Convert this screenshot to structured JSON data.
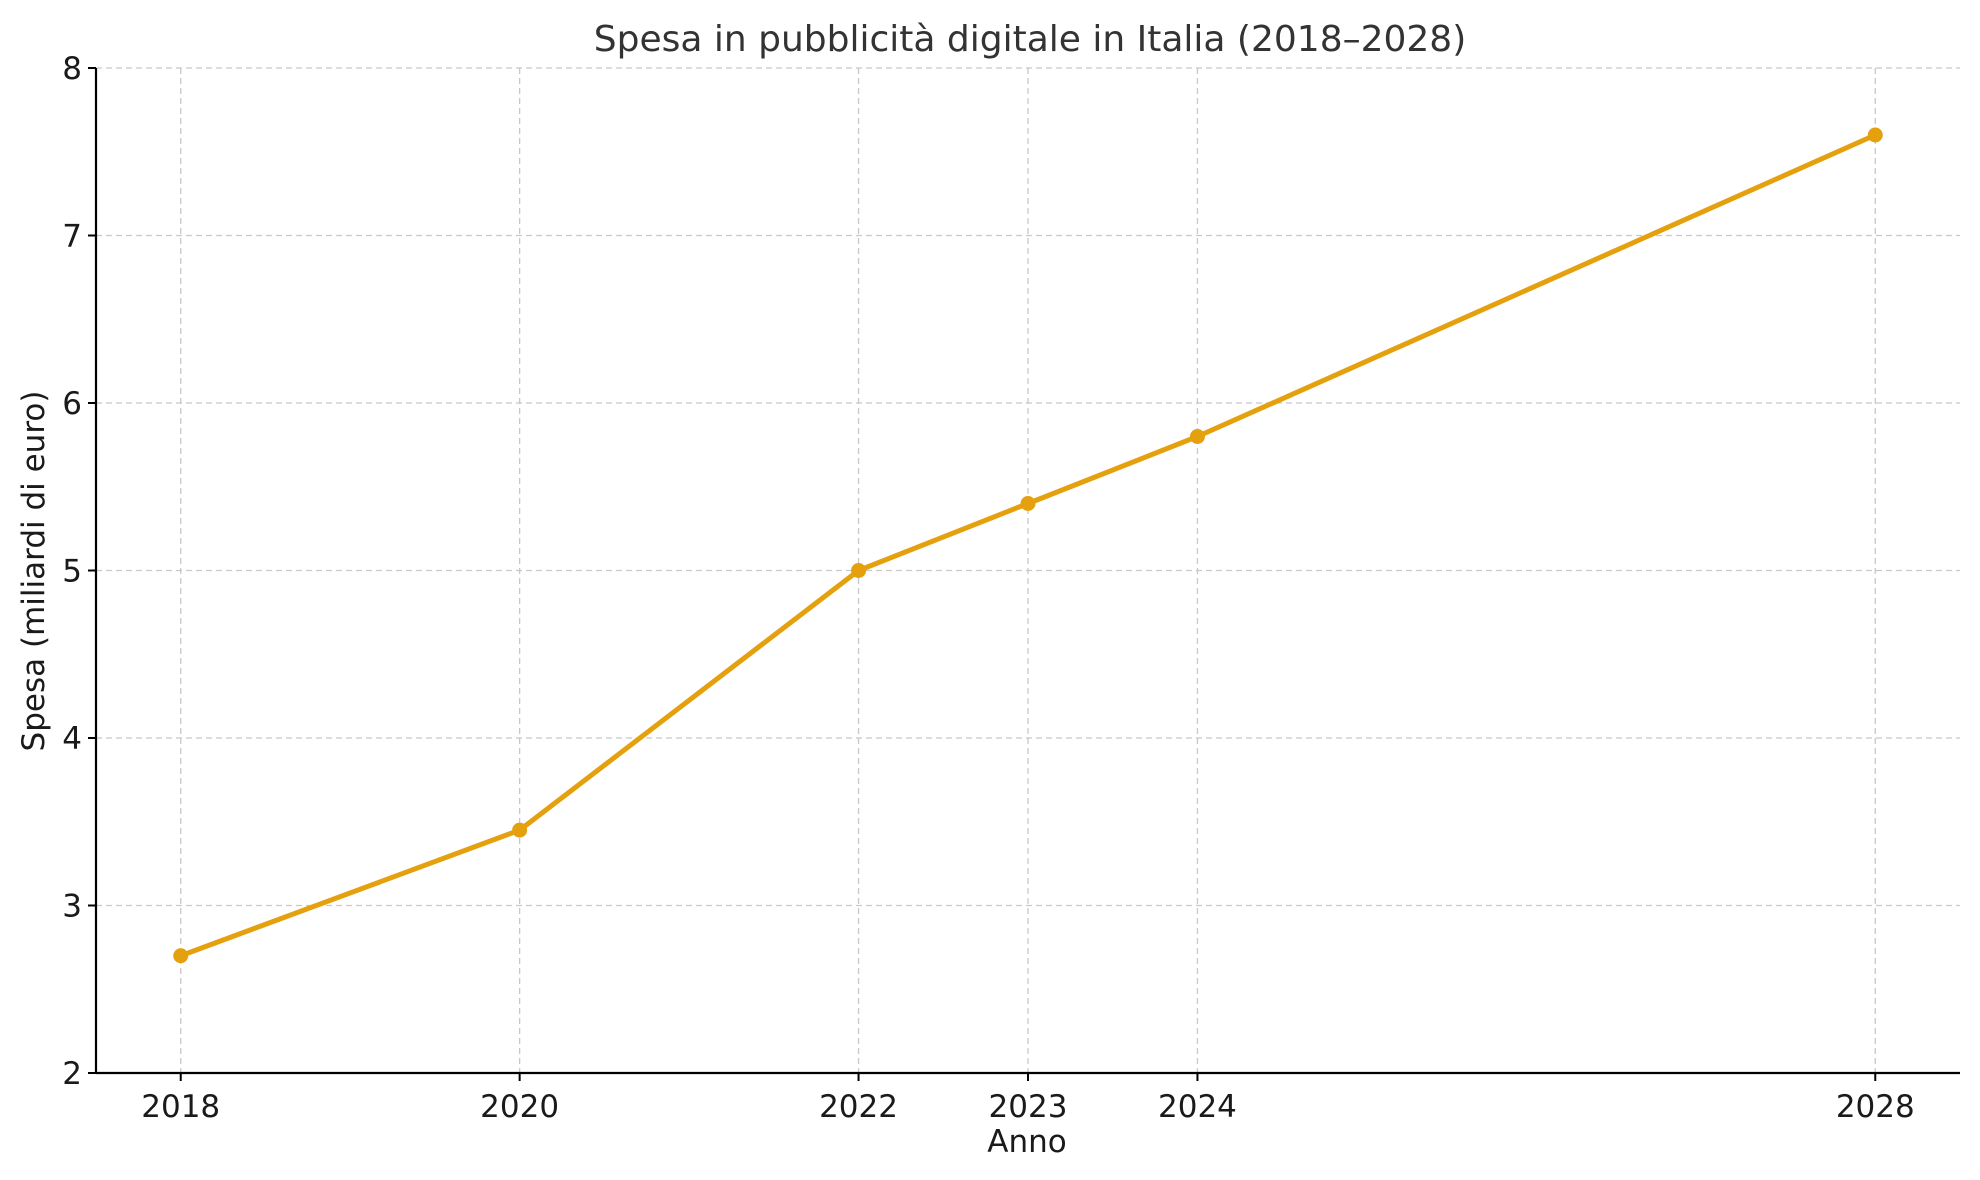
{
  "colors": {
    "series": "#E5A00D",
    "grid": "#C8C8C8",
    "axis": "#000000",
    "title": "#333333"
  },
  "chart_data": {
    "type": "line",
    "title": "Spesa in pubblicità digitale in Italia (2018–2028)",
    "xlabel": "Anno",
    "ylabel": "Spesa (miliardi di euro)",
    "x": [
      2018,
      2020,
      2022,
      2023,
      2024,
      2028
    ],
    "x_tick_labels": [
      "2018",
      "2020",
      "2022",
      "2023",
      "2024",
      "2028"
    ],
    "y_ticks": [
      2,
      3,
      4,
      5,
      6,
      7,
      8
    ],
    "y_tick_labels": [
      "2",
      "3",
      "4",
      "5",
      "6",
      "7",
      "8"
    ],
    "xlim": [
      2017.5,
      2028.5
    ],
    "ylim": [
      2,
      8
    ],
    "grid": true,
    "series": [
      {
        "values": [
          2.7,
          3.45,
          5.0,
          5.4,
          5.8,
          7.6
        ],
        "marker": "circle"
      }
    ]
  }
}
